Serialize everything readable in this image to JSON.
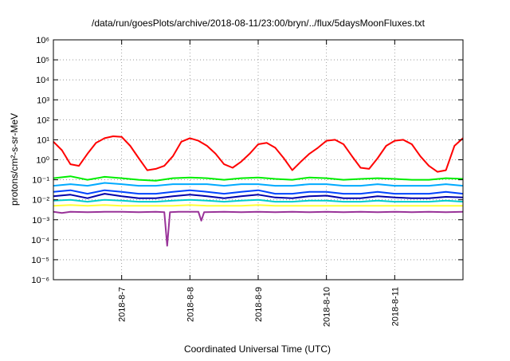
{
  "chart_data": {
    "type": "line",
    "title": "/data/run/goesPlots/archive/2018-08-11/23:00/bryn/../flux/5daysMoonFluxes.txt",
    "xlabel": "Coordinated Universal Time (UTC)",
    "ylabel": "protons/cm²-s-sr-MeV",
    "yscale": "log",
    "xlim": [
      "2018-08-06T00:00",
      "2018-08-12T00:00"
    ],
    "ylim": [
      1e-06,
      1000000.0
    ],
    "y_ticks": [
      "10⁻⁶",
      "10⁻⁵",
      "10⁻⁴",
      "10⁻³",
      "10⁻²",
      "10⁻¹",
      "10⁰",
      "10¹",
      "10²",
      "10³",
      "10⁴",
      "10⁵",
      "10⁶"
    ],
    "x_ticks": [
      "2018-8-7",
      "2018-8-8",
      "2018-8-9",
      "2018-8-10",
      "2018-8-11"
    ],
    "grid": true,
    "legend": "none",
    "series": [
      {
        "color": "#ff0000",
        "x": [
          "2018-08-06T00:00",
          "2018-08-06T03:00",
          "2018-08-06T06:00",
          "2018-08-06T09:00",
          "2018-08-06T12:00",
          "2018-08-06T15:00",
          "2018-08-06T18:00",
          "2018-08-06T21:00",
          "2018-08-07T00:00",
          "2018-08-07T03:00",
          "2018-08-07T06:00",
          "2018-08-07T09:00",
          "2018-08-07T12:00",
          "2018-08-07T15:00",
          "2018-08-07T18:00",
          "2018-08-07T21:00",
          "2018-08-08T00:00",
          "2018-08-08T03:00",
          "2018-08-08T06:00",
          "2018-08-08T09:00",
          "2018-08-08T12:00",
          "2018-08-08T15:00",
          "2018-08-08T18:00",
          "2018-08-08T21:00",
          "2018-08-09T00:00",
          "2018-08-09T03:00",
          "2018-08-09T06:00",
          "2018-08-09T09:00",
          "2018-08-09T12:00",
          "2018-08-09T15:00",
          "2018-08-09T18:00",
          "2018-08-09T21:00",
          "2018-08-10T00:00",
          "2018-08-10T03:00",
          "2018-08-10T06:00",
          "2018-08-10T09:00",
          "2018-08-10T12:00",
          "2018-08-10T15:00",
          "2018-08-10T18:00",
          "2018-08-10T21:00",
          "2018-08-11T00:00",
          "2018-08-11T03:00",
          "2018-08-11T06:00",
          "2018-08-11T09:00",
          "2018-08-11T12:00",
          "2018-08-11T15:00",
          "2018-08-11T18:00",
          "2018-08-11T21:00",
          "2018-08-12T00:00"
        ],
        "y": [
          8,
          3,
          0.6,
          0.5,
          2,
          7,
          12,
          15,
          14,
          5,
          1.2,
          0.3,
          0.35,
          0.5,
          1.5,
          8,
          12,
          9,
          5,
          2,
          0.6,
          0.4,
          0.8,
          2,
          6,
          7,
          4,
          1.2,
          0.3,
          0.8,
          2,
          4,
          9,
          10,
          6,
          1.5,
          0.4,
          0.35,
          1.2,
          5,
          9,
          10,
          6,
          1.5,
          0.5,
          0.25,
          0.3,
          5,
          12
        ]
      },
      {
        "color": "#00ee00",
        "x": [
          "2018-08-06T00:00",
          "2018-08-06T06:00",
          "2018-08-06T12:00",
          "2018-08-06T18:00",
          "2018-08-07T00:00",
          "2018-08-07T06:00",
          "2018-08-07T12:00",
          "2018-08-07T18:00",
          "2018-08-08T00:00",
          "2018-08-08T06:00",
          "2018-08-08T12:00",
          "2018-08-08T18:00",
          "2018-08-09T00:00",
          "2018-08-09T06:00",
          "2018-08-09T12:00",
          "2018-08-09T18:00",
          "2018-08-10T00:00",
          "2018-08-10T06:00",
          "2018-08-10T12:00",
          "2018-08-10T18:00",
          "2018-08-11T00:00",
          "2018-08-11T06:00",
          "2018-08-11T12:00",
          "2018-08-11T18:00",
          "2018-08-12T00:00"
        ],
        "y": [
          0.12,
          0.15,
          0.1,
          0.14,
          0.12,
          0.1,
          0.09,
          0.12,
          0.13,
          0.12,
          0.1,
          0.12,
          0.13,
          0.11,
          0.1,
          0.13,
          0.12,
          0.1,
          0.11,
          0.12,
          0.11,
          0.1,
          0.1,
          0.12,
          0.11
        ]
      },
      {
        "color": "#00aaff",
        "x": [
          "2018-08-06T00:00",
          "2018-08-06T06:00",
          "2018-08-06T12:00",
          "2018-08-06T18:00",
          "2018-08-07T00:00",
          "2018-08-07T06:00",
          "2018-08-07T12:00",
          "2018-08-07T18:00",
          "2018-08-08T00:00",
          "2018-08-08T06:00",
          "2018-08-08T12:00",
          "2018-08-08T18:00",
          "2018-08-09T00:00",
          "2018-08-09T06:00",
          "2018-08-09T12:00",
          "2018-08-09T18:00",
          "2018-08-10T00:00",
          "2018-08-10T06:00",
          "2018-08-10T12:00",
          "2018-08-10T18:00",
          "2018-08-11T00:00",
          "2018-08-11T06:00",
          "2018-08-11T12:00",
          "2018-08-11T18:00",
          "2018-08-12T00:00"
        ],
        "y": [
          0.05,
          0.06,
          0.05,
          0.07,
          0.06,
          0.05,
          0.05,
          0.06,
          0.06,
          0.06,
          0.05,
          0.06,
          0.06,
          0.05,
          0.05,
          0.06,
          0.06,
          0.05,
          0.05,
          0.06,
          0.05,
          0.05,
          0.05,
          0.06,
          0.05
        ]
      },
      {
        "color": "#0044ff",
        "x": [
          "2018-08-06T00:00",
          "2018-08-06T06:00",
          "2018-08-06T12:00",
          "2018-08-06T18:00",
          "2018-08-07T00:00",
          "2018-08-07T06:00",
          "2018-08-07T12:00",
          "2018-08-07T18:00",
          "2018-08-08T00:00",
          "2018-08-08T06:00",
          "2018-08-08T12:00",
          "2018-08-08T18:00",
          "2018-08-09T00:00",
          "2018-08-09T06:00",
          "2018-08-09T12:00",
          "2018-08-09T18:00",
          "2018-08-10T00:00",
          "2018-08-10T06:00",
          "2018-08-10T12:00",
          "2018-08-10T18:00",
          "2018-08-11T00:00",
          "2018-08-11T06:00",
          "2018-08-11T12:00",
          "2018-08-11T18:00",
          "2018-08-12T00:00"
        ],
        "y": [
          0.025,
          0.03,
          0.02,
          0.03,
          0.025,
          0.02,
          0.02,
          0.025,
          0.03,
          0.025,
          0.02,
          0.025,
          0.03,
          0.02,
          0.02,
          0.025,
          0.025,
          0.02,
          0.02,
          0.025,
          0.02,
          0.02,
          0.02,
          0.025,
          0.02
        ]
      },
      {
        "color": "#0000aa",
        "x": [
          "2018-08-06T00:00",
          "2018-08-06T06:00",
          "2018-08-06T12:00",
          "2018-08-06T18:00",
          "2018-08-07T00:00",
          "2018-08-07T06:00",
          "2018-08-07T12:00",
          "2018-08-07T18:00",
          "2018-08-08T00:00",
          "2018-08-08T06:00",
          "2018-08-08T12:00",
          "2018-08-08T18:00",
          "2018-08-09T00:00",
          "2018-08-09T06:00",
          "2018-08-09T12:00",
          "2018-08-09T18:00",
          "2018-08-10T00:00",
          "2018-08-10T06:00",
          "2018-08-10T12:00",
          "2018-08-10T18:00",
          "2018-08-11T00:00",
          "2018-08-11T06:00",
          "2018-08-11T12:00",
          "2018-08-11T18:00",
          "2018-08-12T00:00"
        ],
        "y": [
          0.015,
          0.018,
          0.012,
          0.02,
          0.015,
          0.012,
          0.012,
          0.015,
          0.018,
          0.015,
          0.012,
          0.015,
          0.018,
          0.013,
          0.012,
          0.015,
          0.016,
          0.012,
          0.012,
          0.015,
          0.013,
          0.012,
          0.012,
          0.014,
          0.013
        ]
      },
      {
        "color": "#00cccc",
        "x": [
          "2018-08-06T00:00",
          "2018-08-06T06:00",
          "2018-08-06T12:00",
          "2018-08-06T18:00",
          "2018-08-07T00:00",
          "2018-08-07T06:00",
          "2018-08-07T12:00",
          "2018-08-07T18:00",
          "2018-08-08T00:00",
          "2018-08-08T06:00",
          "2018-08-08T12:00",
          "2018-08-08T18:00",
          "2018-08-09T00:00",
          "2018-08-09T06:00",
          "2018-08-09T12:00",
          "2018-08-09T18:00",
          "2018-08-10T00:00",
          "2018-08-10T06:00",
          "2018-08-10T12:00",
          "2018-08-10T18:00",
          "2018-08-11T00:00",
          "2018-08-11T06:00",
          "2018-08-11T12:00",
          "2018-08-11T18:00",
          "2018-08-12T00:00"
        ],
        "y": [
          0.009,
          0.01,
          0.008,
          0.01,
          0.009,
          0.008,
          0.008,
          0.009,
          0.01,
          0.009,
          0.008,
          0.009,
          0.01,
          0.008,
          0.008,
          0.009,
          0.009,
          0.008,
          0.008,
          0.009,
          0.008,
          0.008,
          0.008,
          0.009,
          0.008
        ]
      },
      {
        "color": "#ffff33",
        "x": [
          "2018-08-06T00:00",
          "2018-08-06T06:00",
          "2018-08-06T12:00",
          "2018-08-06T18:00",
          "2018-08-07T00:00",
          "2018-08-07T06:00",
          "2018-08-07T12:00",
          "2018-08-07T18:00",
          "2018-08-08T00:00",
          "2018-08-08T06:00",
          "2018-08-08T12:00",
          "2018-08-08T18:00",
          "2018-08-09T00:00",
          "2018-08-09T06:00",
          "2018-08-09T12:00",
          "2018-08-09T18:00",
          "2018-08-10T00:00",
          "2018-08-10T06:00",
          "2018-08-10T12:00",
          "2018-08-10T18:00",
          "2018-08-11T00:00",
          "2018-08-11T06:00",
          "2018-08-11T12:00",
          "2018-08-11T18:00",
          "2018-08-12T00:00"
        ],
        "y": [
          0.005,
          0.0055,
          0.005,
          0.0055,
          0.005,
          0.005,
          0.005,
          0.005,
          0.0055,
          0.005,
          0.005,
          0.005,
          0.0055,
          0.005,
          0.005,
          0.005,
          0.005,
          0.005,
          0.005,
          0.005,
          0.005,
          0.005,
          0.005,
          0.005,
          0.005
        ]
      },
      {
        "color": "#993399",
        "x": [
          "2018-08-06T00:00",
          "2018-08-06T03:00",
          "2018-08-06T06:00",
          "2018-08-06T12:00",
          "2018-08-06T18:00",
          "2018-08-07T00:00",
          "2018-08-07T06:00",
          "2018-08-07T12:00",
          "2018-08-07T15:00",
          "2018-08-07T16:00",
          "2018-08-07T17:00",
          "2018-08-07T20:00",
          "2018-08-08T00:00",
          "2018-08-08T03:00",
          "2018-08-08T04:00",
          "2018-08-08T05:00",
          "2018-08-08T12:00",
          "2018-08-08T18:00",
          "2018-08-09T00:00",
          "2018-08-09T06:00",
          "2018-08-09T12:00",
          "2018-08-09T18:00",
          "2018-08-10T00:00",
          "2018-08-10T06:00",
          "2018-08-10T12:00",
          "2018-08-10T18:00",
          "2018-08-11T00:00",
          "2018-08-11T06:00",
          "2018-08-11T12:00",
          "2018-08-11T18:00",
          "2018-08-12T00:00"
        ],
        "y": [
          0.0025,
          0.0022,
          0.0025,
          0.0024,
          0.0025,
          0.0025,
          0.0024,
          0.0025,
          0.0024,
          5e-05,
          0.0024,
          0.0025,
          0.0025,
          0.0025,
          0.0009,
          0.0024,
          0.0025,
          0.0024,
          0.0025,
          0.0024,
          0.0025,
          0.0024,
          0.0025,
          0.0024,
          0.0025,
          0.0024,
          0.0025,
          0.0024,
          0.0025,
          0.0024,
          0.0025
        ]
      }
    ]
  }
}
